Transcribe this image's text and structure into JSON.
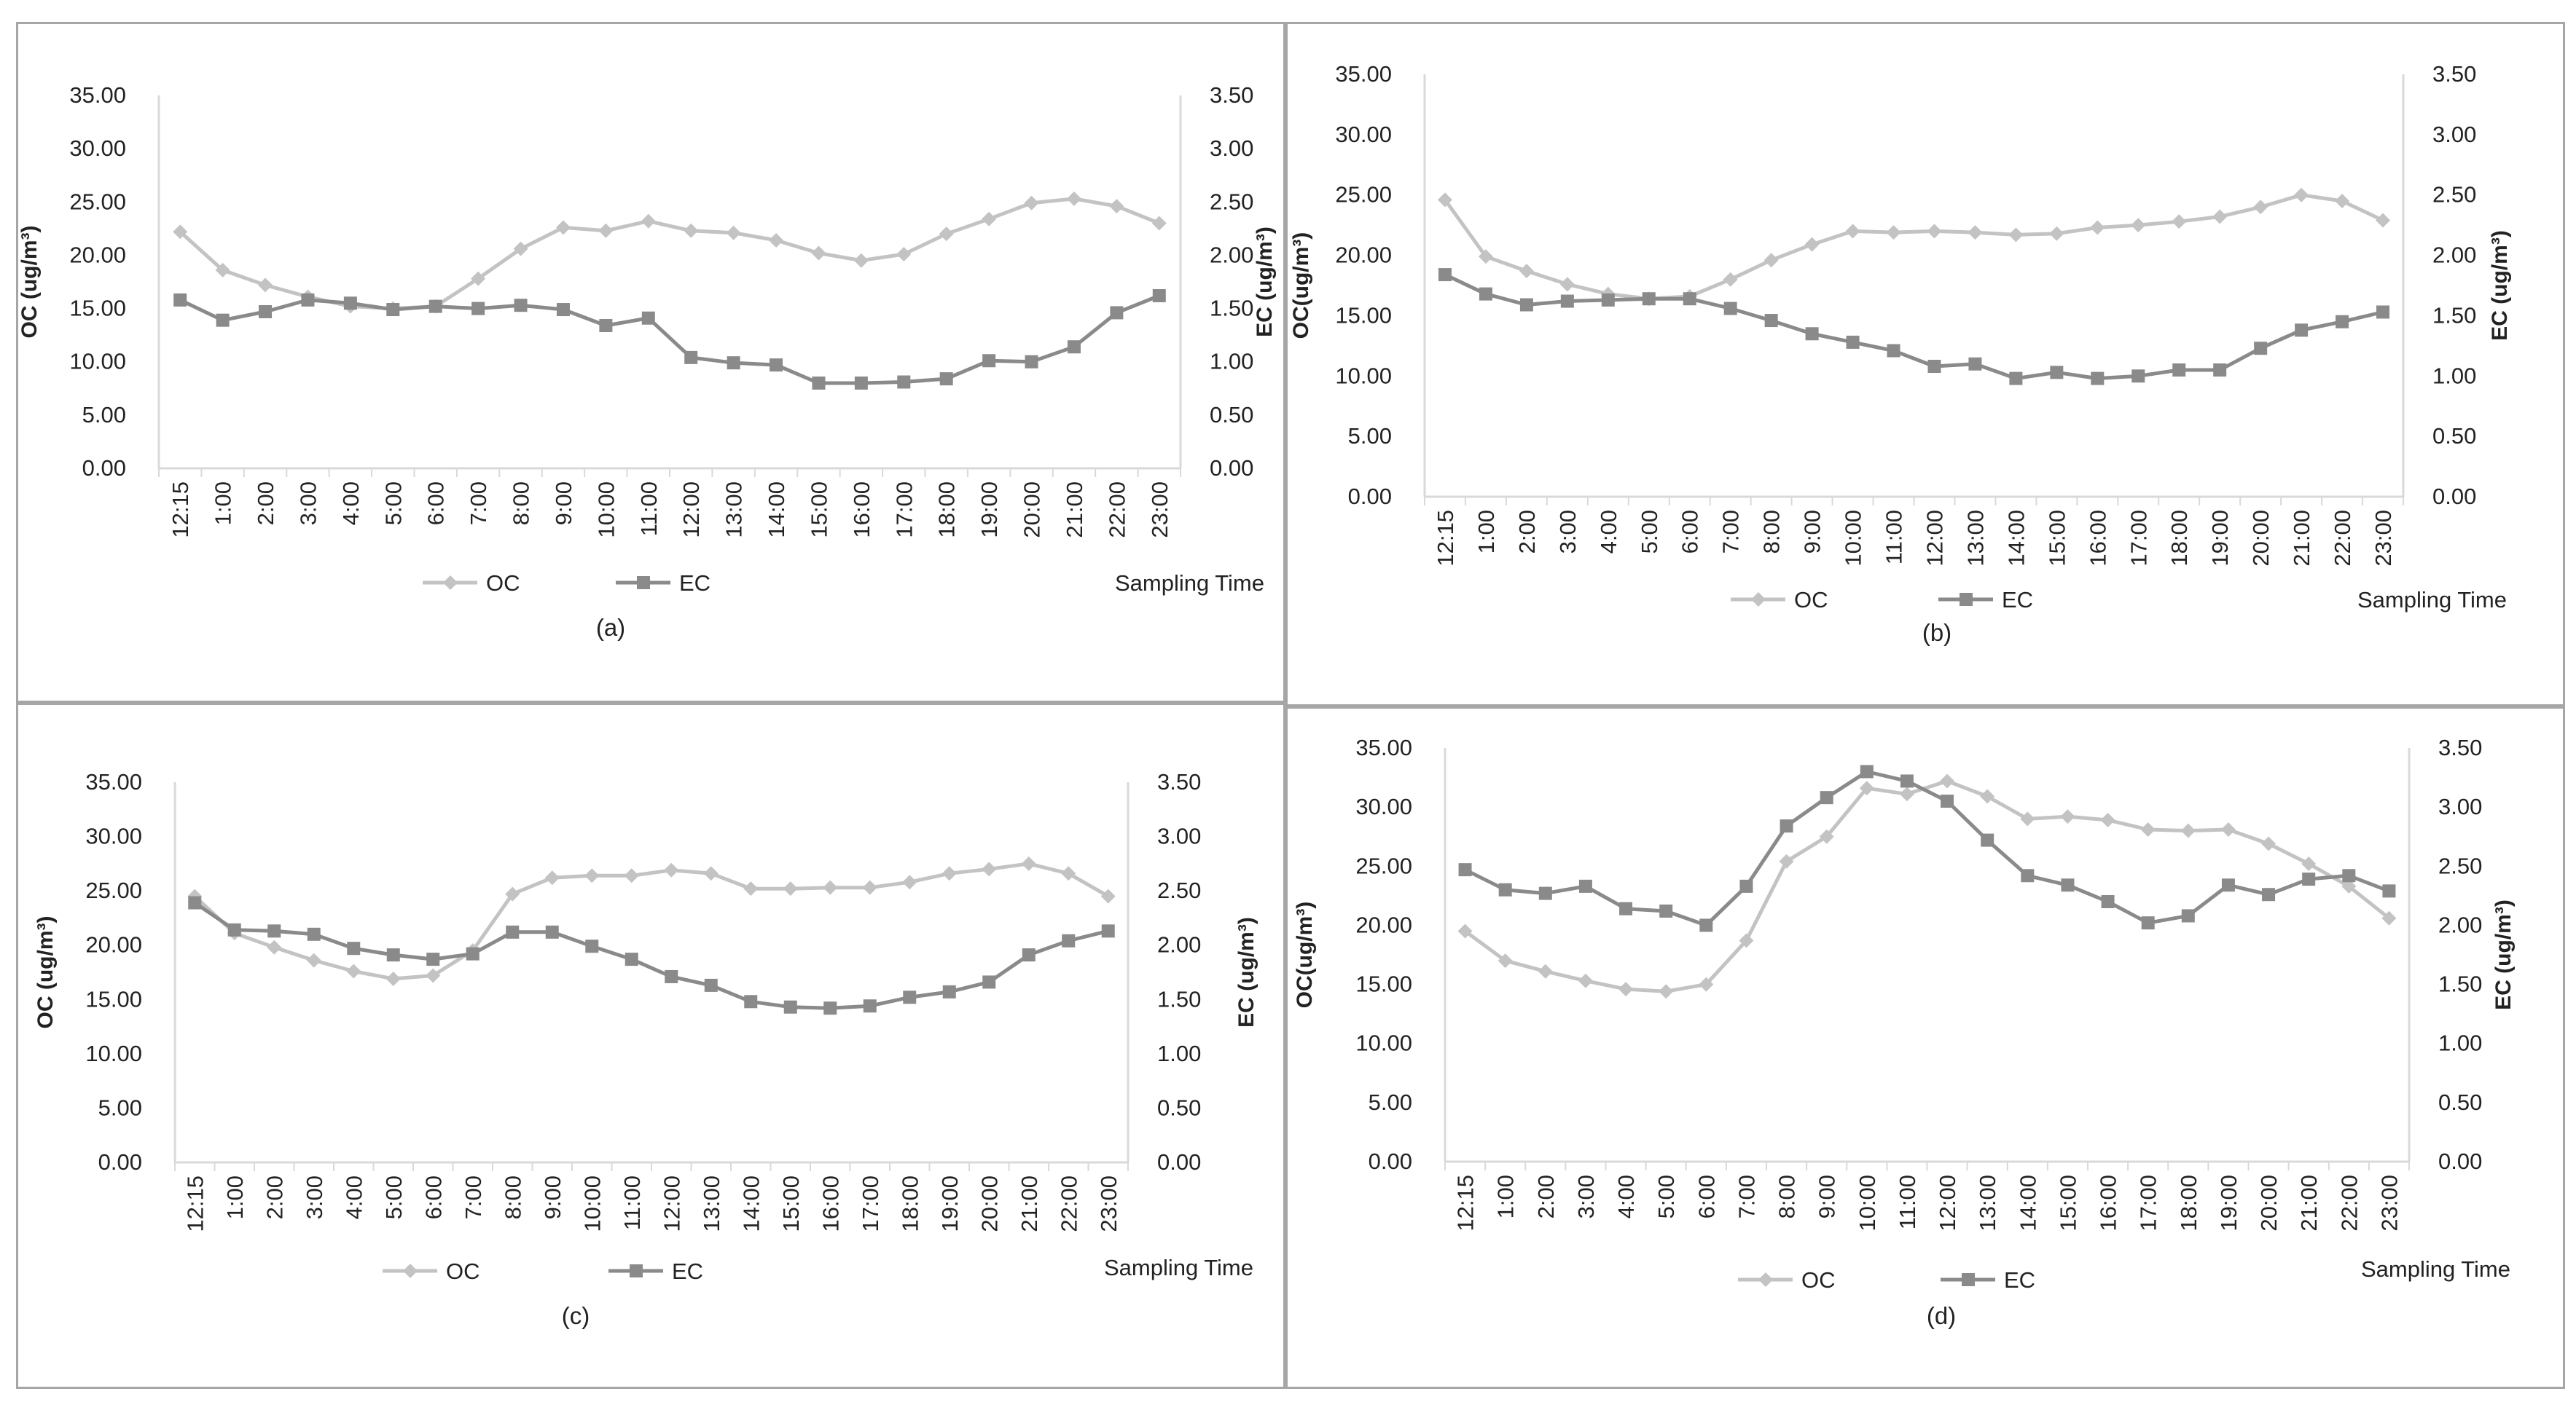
{
  "figure": {
    "series_colors": {
      "OC": "#c3c3c3",
      "EC": "#8a8a8a"
    },
    "axis_color": "#d9d9d9",
    "text_color": "#222222"
  },
  "chart_data": [
    {
      "panel": "(a)",
      "type": "line",
      "x": [
        "12:15",
        "1:00",
        "2:00",
        "3:00",
        "4:00",
        "5:00",
        "6:00",
        "7:00",
        "8:00",
        "9:00",
        "10:00",
        "11:00",
        "12:00",
        "13:00",
        "14:00",
        "15:00",
        "16:00",
        "17:00",
        "18:00",
        "19:00",
        "20:00",
        "21:00",
        "22:00",
        "23:00"
      ],
      "series": [
        {
          "name": "OC",
          "axis": "left",
          "marker": "diamond",
          "values": [
            22.2,
            18.6,
            17.2,
            16.1,
            15.2,
            15.0,
            15.2,
            17.8,
            20.6,
            22.6,
            22.3,
            23.2,
            22.3,
            22.1,
            21.4,
            20.2,
            19.5,
            20.1,
            22.0,
            23.4,
            24.9,
            25.3,
            24.6,
            23.0
          ]
        },
        {
          "name": "EC",
          "axis": "right",
          "marker": "square",
          "values": [
            1.58,
            1.39,
            1.47,
            1.58,
            1.55,
            1.49,
            1.52,
            1.5,
            1.53,
            1.49,
            1.34,
            1.41,
            1.04,
            0.99,
            0.97,
            0.8,
            0.8,
            0.81,
            0.84,
            1.01,
            1.0,
            1.14,
            1.46,
            1.62
          ]
        }
      ],
      "yleft": {
        "label": "OC (ug/m³)",
        "lim": [
          0,
          35
        ],
        "ticks": [
          "0.00",
          "5.00",
          "10.00",
          "15.00",
          "20.00",
          "25.00",
          "30.00",
          "35.00"
        ]
      },
      "yright": {
        "label": "EC (ug/m³)",
        "lim": [
          0,
          3.5
        ],
        "ticks": [
          "0.00",
          "0.50",
          "1.00",
          "1.50",
          "2.00",
          "2.50",
          "3.00",
          "3.50"
        ]
      },
      "xlabel": "Sampling Time",
      "legend": [
        "OC",
        "EC"
      ]
    },
    {
      "panel": "(b)",
      "type": "line",
      "x": [
        "12:15",
        "1:00",
        "2:00",
        "3:00",
        "4:00",
        "5:00",
        "6:00",
        "7:00",
        "8:00",
        "9:00",
        "10:00",
        "11:00",
        "12:00",
        "13:00",
        "14:00",
        "15:00",
        "16:00",
        "17:00",
        "18:00",
        "19:00",
        "20:00",
        "21:00",
        "22:00",
        "23:00"
      ],
      "series": [
        {
          "name": "OC",
          "axis": "left",
          "marker": "diamond",
          "values": [
            24.6,
            19.9,
            18.7,
            17.6,
            16.8,
            16.4,
            16.6,
            18.0,
            19.6,
            20.9,
            22.0,
            21.9,
            22.0,
            21.9,
            21.7,
            21.8,
            22.3,
            22.5,
            22.8,
            23.2,
            24.0,
            25.0,
            24.5,
            22.9
          ]
        },
        {
          "name": "EC",
          "axis": "right",
          "marker": "square",
          "values": [
            1.84,
            1.68,
            1.59,
            1.62,
            1.63,
            1.64,
            1.64,
            1.56,
            1.46,
            1.35,
            1.28,
            1.21,
            1.08,
            1.1,
            0.98,
            1.03,
            0.98,
            1.0,
            1.05,
            1.05,
            1.23,
            1.38,
            1.45,
            1.53
          ]
        }
      ],
      "yleft": {
        "label": "OC(ug/m³)",
        "lim": [
          0,
          35
        ],
        "ticks": [
          "0.00",
          "5.00",
          "10.00",
          "15.00",
          "20.00",
          "25.00",
          "30.00",
          "35.00"
        ]
      },
      "yright": {
        "label": "EC (ug/m³)",
        "lim": [
          0,
          3.5
        ],
        "ticks": [
          "0.00",
          "0.50",
          "1.00",
          "1.50",
          "2.00",
          "2.50",
          "3.00",
          "3.50"
        ]
      },
      "xlabel": "Sampling Time",
      "legend": [
        "OC",
        "EC"
      ]
    },
    {
      "panel": "(c)",
      "type": "line",
      "x": [
        "12:15",
        "1:00",
        "2:00",
        "3:00",
        "4:00",
        "5:00",
        "6:00",
        "7:00",
        "8:00",
        "9:00",
        "10:00",
        "11:00",
        "12:00",
        "13:00",
        "14:00",
        "15:00",
        "16:00",
        "17:00",
        "18:00",
        "19:00",
        "20:00",
        "21:00",
        "22:00",
        "23:00"
      ],
      "series": [
        {
          "name": "OC",
          "axis": "left",
          "marker": "diamond",
          "values": [
            24.5,
            21.1,
            19.8,
            18.6,
            17.6,
            16.9,
            17.2,
            19.5,
            24.7,
            26.2,
            26.4,
            26.4,
            26.9,
            26.6,
            25.2,
            25.2,
            25.3,
            25.3,
            25.8,
            26.6,
            27.0,
            27.5,
            26.6,
            24.5
          ]
        },
        {
          "name": "EC",
          "axis": "right",
          "marker": "square",
          "values": [
            2.39,
            2.14,
            2.13,
            2.1,
            1.97,
            1.91,
            1.87,
            1.92,
            2.12,
            2.12,
            1.99,
            1.87,
            1.71,
            1.63,
            1.48,
            1.43,
            1.42,
            1.44,
            1.52,
            1.57,
            1.66,
            1.91,
            2.04,
            2.13
          ]
        }
      ],
      "yleft": {
        "label": "OC (ug/m³)",
        "lim": [
          0,
          35
        ],
        "ticks": [
          "0.00",
          "5.00",
          "10.00",
          "15.00",
          "20.00",
          "25.00",
          "30.00",
          "35.00"
        ]
      },
      "yright": {
        "label": "EC (ug/m³)",
        "lim": [
          0,
          3.5
        ],
        "ticks": [
          "0.00",
          "0.50",
          "1.00",
          "1.50",
          "2.00",
          "2.50",
          "3.00",
          "3.50"
        ]
      },
      "xlabel": "Sampling Time",
      "legend": [
        "OC",
        "EC"
      ]
    },
    {
      "panel": "(d)",
      "type": "line",
      "x": [
        "12:15",
        "1:00",
        "2:00",
        "3:00",
        "4:00",
        "5:00",
        "6:00",
        "7:00",
        "8:00",
        "9:00",
        "10:00",
        "11:00",
        "12:00",
        "13:00",
        "14:00",
        "15:00",
        "16:00",
        "17:00",
        "18:00",
        "19:00",
        "20:00",
        "21:00",
        "22:00",
        "23:00"
      ],
      "series": [
        {
          "name": "OC",
          "axis": "left",
          "marker": "diamond",
          "values": [
            19.5,
            17.0,
            16.1,
            15.3,
            14.6,
            14.4,
            15.0,
            18.7,
            25.4,
            27.5,
            31.6,
            31.1,
            32.2,
            30.9,
            29.0,
            29.2,
            28.9,
            28.1,
            28.0,
            28.1,
            26.9,
            25.2,
            23.3,
            20.6
          ]
        },
        {
          "name": "EC",
          "axis": "right",
          "marker": "square",
          "values": [
            2.47,
            2.3,
            2.27,
            2.33,
            2.14,
            2.12,
            2.0,
            2.33,
            2.84,
            3.08,
            3.3,
            3.22,
            3.05,
            2.72,
            2.42,
            2.34,
            2.2,
            2.02,
            2.08,
            2.34,
            2.26,
            2.39,
            2.42,
            2.29
          ]
        }
      ],
      "yleft": {
        "label": "OC(ug/m³)",
        "lim": [
          0,
          35
        ],
        "ticks": [
          "0.00",
          "5.00",
          "10.00",
          "15.00",
          "20.00",
          "25.00",
          "30.00",
          "35.00"
        ]
      },
      "yright": {
        "label": "EC (ug/m³)",
        "lim": [
          0,
          3.5
        ],
        "ticks": [
          "0.00",
          "0.50",
          "1.00",
          "1.50",
          "2.00",
          "2.50",
          "3.00",
          "3.50"
        ]
      },
      "xlabel": "Sampling Time",
      "legend": [
        "OC",
        "EC"
      ]
    }
  ]
}
